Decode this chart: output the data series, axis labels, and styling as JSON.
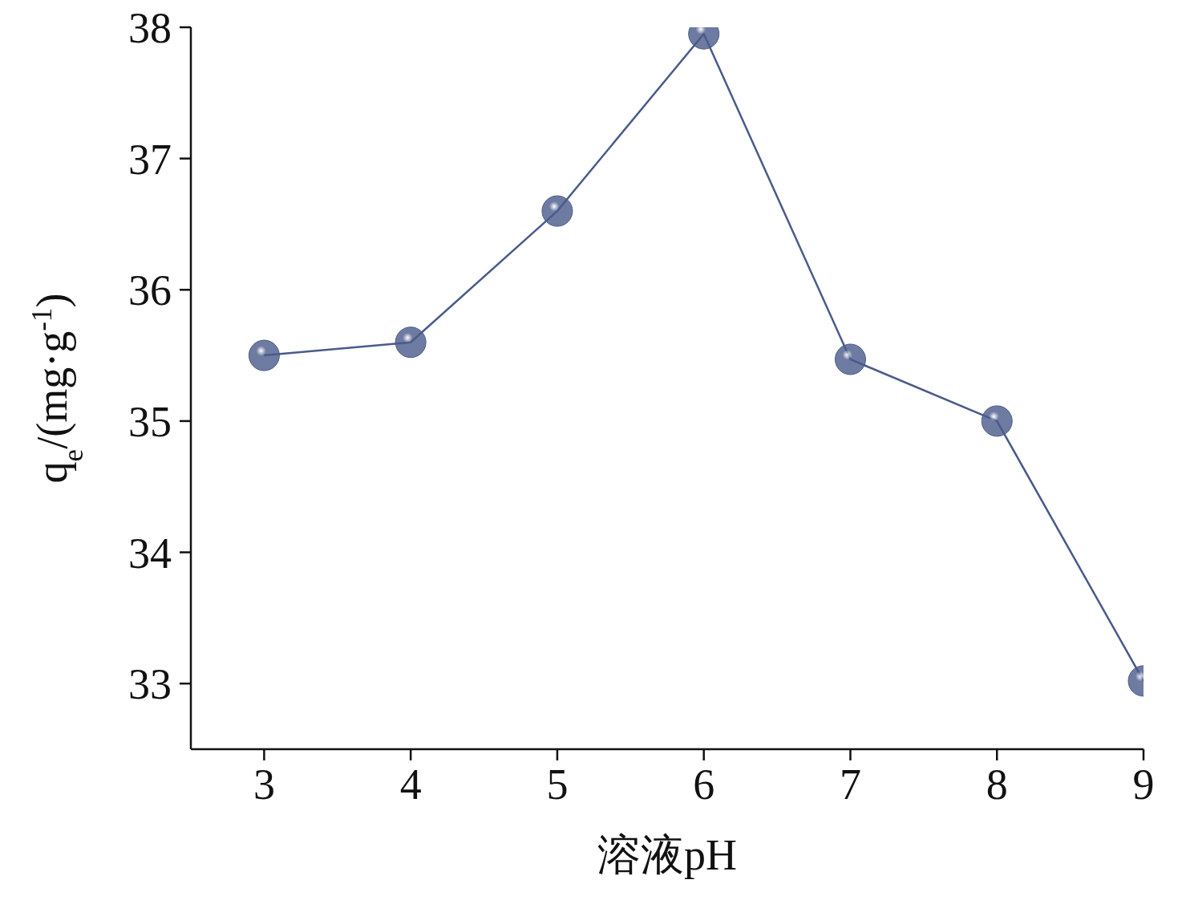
{
  "chart_data": {
    "type": "line",
    "xlabel": "溶液pH",
    "ylabel": "q$_{e}$/(mg·g$^{-1}$)",
    "x": [
      3,
      4,
      5,
      6,
      7,
      8,
      9
    ],
    "series": [
      {
        "color": "#4a5a8a",
        "values": [
          35.5,
          35.6,
          36.6,
          37.95,
          35.47,
          35.0,
          33.02
        ]
      }
    ],
    "xlim": [
      2.5,
      9
    ],
    "xticks": [
      3,
      4,
      5,
      6,
      7,
      8,
      9
    ],
    "ylim": [
      32.5,
      38
    ],
    "yticks": [
      33,
      34,
      35,
      36,
      37,
      38
    ],
    "grid": false,
    "legend": false,
    "marker": "circle",
    "line_style": "solid"
  }
}
